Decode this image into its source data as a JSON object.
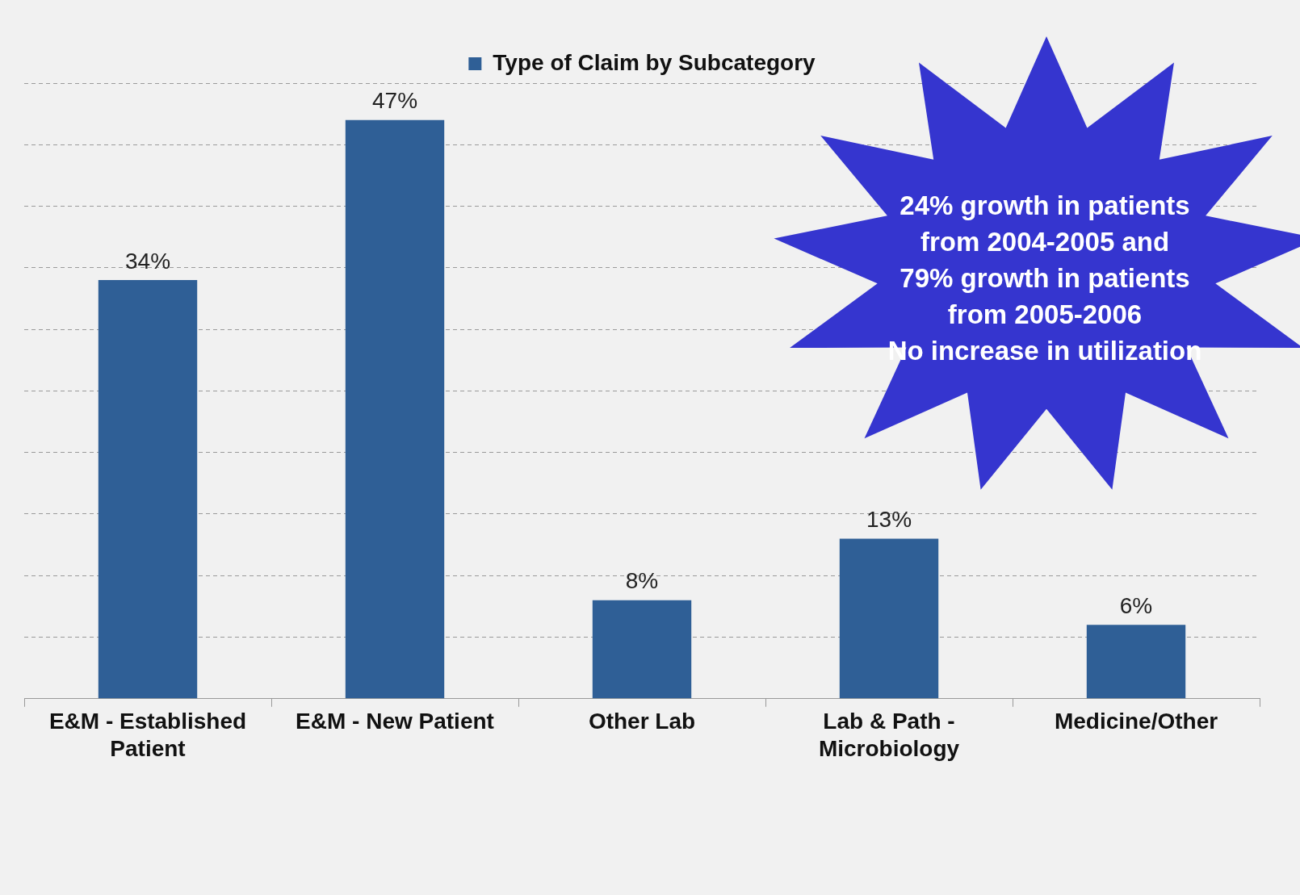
{
  "chart_data": {
    "type": "bar",
    "categories": [
      "E&M - Established Patient",
      "E&M - New Patient",
      "Other Lab",
      "Lab & Path - Microbiology",
      "Medicine/Other"
    ],
    "series": [
      {
        "name": "Type of Claim by Subcategory",
        "color": "#2f5f96",
        "values": [
          34,
          47,
          8,
          13,
          6
        ],
        "value_labels": [
          "34%",
          "47%",
          "8%",
          "13%",
          "6%"
        ]
      }
    ],
    "grid": "y",
    "legend": "top",
    "tick_labels": "x",
    "annotations": [
      "24% growth in patients\nfrom 2004-2005 and\n79% growth in patients\nfrom 2005-2006\nNo increase in utilization"
    ]
  }
}
